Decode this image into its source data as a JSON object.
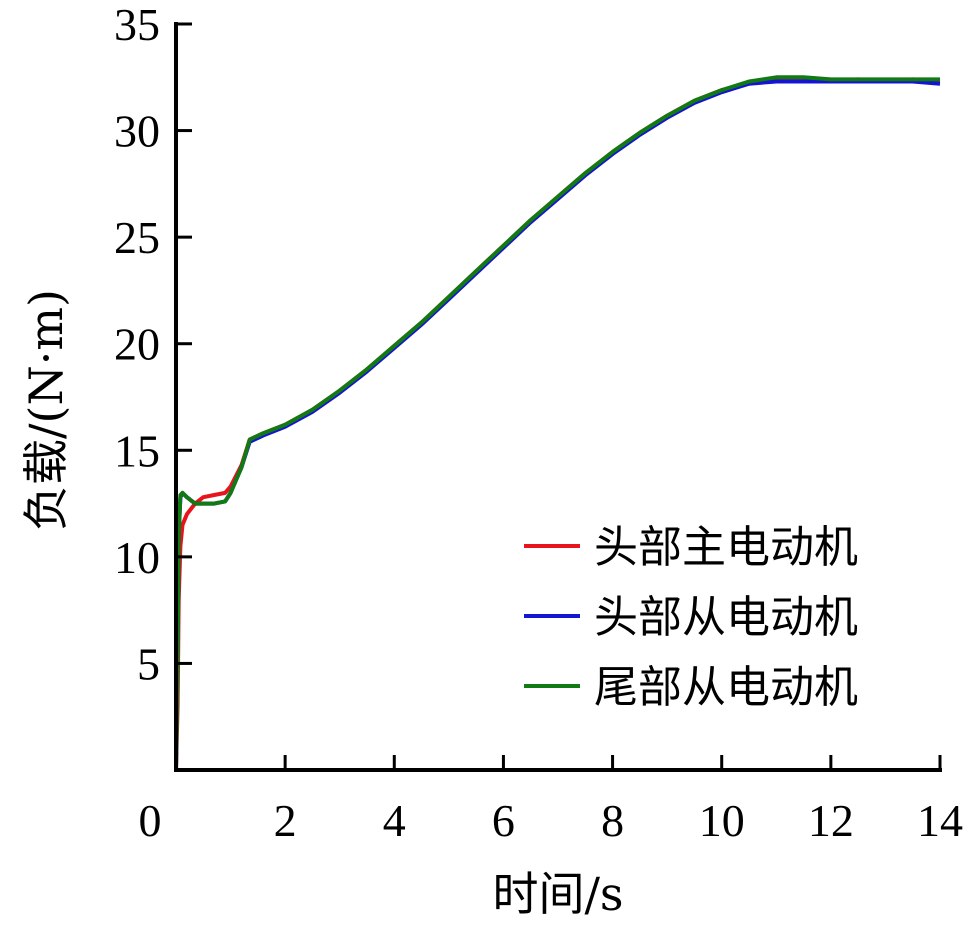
{
  "chart_data": {
    "type": "line",
    "title": "",
    "xlabel": "时间/s",
    "ylabel": "负载/(N·m)",
    "xlim": [
      0,
      14
    ],
    "ylim": [
      0,
      35
    ],
    "xticks": [
      0,
      2,
      4,
      6,
      8,
      10,
      12,
      14
    ],
    "yticks": [
      5,
      10,
      15,
      20,
      25,
      30,
      35
    ],
    "xtick_labels": [
      "0",
      "2",
      "4",
      "6",
      "8",
      "10",
      "12",
      "14"
    ],
    "ytick_labels": [
      "5",
      "10",
      "15",
      "20",
      "25",
      "30",
      "35"
    ],
    "grid": false,
    "legend_position": "lower right",
    "series": [
      {
        "name": "头部主电动机",
        "color": "#e8141c",
        "x": [
          0.0,
          0.03,
          0.05,
          0.08,
          0.12,
          0.2,
          0.35,
          0.5,
          0.7,
          0.9,
          1.0,
          1.1,
          1.2,
          1.35,
          1.6,
          2.0,
          2.5,
          3.0,
          3.5,
          4.0,
          4.5,
          5.0,
          5.5,
          6.0,
          6.5,
          7.0,
          7.5,
          8.0,
          8.5,
          9.0,
          9.5,
          10.0,
          10.5,
          11.0,
          11.5,
          12.0,
          12.5,
          13.0,
          13.5,
          14.0
        ],
        "values": [
          0.0,
          3.0,
          8.0,
          10.5,
          11.5,
          12.0,
          12.5,
          12.8,
          12.9,
          13.0,
          13.3,
          13.8,
          14.3,
          15.5,
          15.8,
          16.2,
          16.9,
          17.8,
          18.8,
          19.9,
          21.0,
          22.2,
          23.4,
          24.6,
          25.8,
          26.9,
          28.0,
          29.0,
          29.9,
          30.7,
          31.4,
          31.9,
          32.2,
          32.4,
          32.4,
          32.3,
          32.4,
          32.3,
          32.4,
          32.3
        ]
      },
      {
        "name": "头部从电动机",
        "color": "#1414d2",
        "x": [
          0.0,
          0.03,
          0.05,
          0.08,
          0.12,
          0.2,
          0.35,
          0.5,
          0.7,
          0.9,
          1.0,
          1.1,
          1.2,
          1.35,
          1.6,
          2.0,
          2.5,
          3.0,
          3.5,
          4.0,
          4.5,
          5.0,
          5.5,
          6.0,
          6.5,
          7.0,
          7.5,
          8.0,
          8.5,
          9.0,
          9.5,
          10.0,
          10.5,
          11.0,
          11.5,
          12.0,
          12.5,
          13.0,
          13.5,
          14.0
        ],
        "values": [
          0.0,
          5.5,
          11.0,
          12.8,
          13.0,
          12.8,
          12.5,
          12.5,
          12.5,
          12.6,
          13.0,
          13.6,
          14.2,
          15.4,
          15.7,
          16.1,
          16.8,
          17.7,
          18.7,
          19.8,
          20.9,
          22.1,
          23.3,
          24.5,
          25.7,
          26.8,
          27.9,
          28.9,
          29.8,
          30.6,
          31.3,
          31.8,
          32.2,
          32.3,
          32.3,
          32.3,
          32.3,
          32.3,
          32.3,
          32.2
        ]
      },
      {
        "name": "尾部从电动机",
        "color": "#127a12",
        "x": [
          0.0,
          0.03,
          0.05,
          0.08,
          0.12,
          0.2,
          0.35,
          0.5,
          0.7,
          0.9,
          1.0,
          1.1,
          1.2,
          1.35,
          1.6,
          2.0,
          2.5,
          3.0,
          3.5,
          4.0,
          4.5,
          5.0,
          5.5,
          6.0,
          6.5,
          7.0,
          7.5,
          8.0,
          8.5,
          9.0,
          9.5,
          10.0,
          10.5,
          11.0,
          11.5,
          12.0,
          12.5,
          13.0,
          13.5,
          14.0
        ],
        "values": [
          0.0,
          5.5,
          11.0,
          12.9,
          13.0,
          12.8,
          12.5,
          12.5,
          12.5,
          12.6,
          13.0,
          13.6,
          14.2,
          15.5,
          15.8,
          16.2,
          16.9,
          17.8,
          18.8,
          19.9,
          21.0,
          22.2,
          23.4,
          24.6,
          25.8,
          26.9,
          28.0,
          29.0,
          29.9,
          30.7,
          31.4,
          31.9,
          32.3,
          32.5,
          32.5,
          32.4,
          32.4,
          32.4,
          32.4,
          32.4
        ]
      }
    ]
  }
}
